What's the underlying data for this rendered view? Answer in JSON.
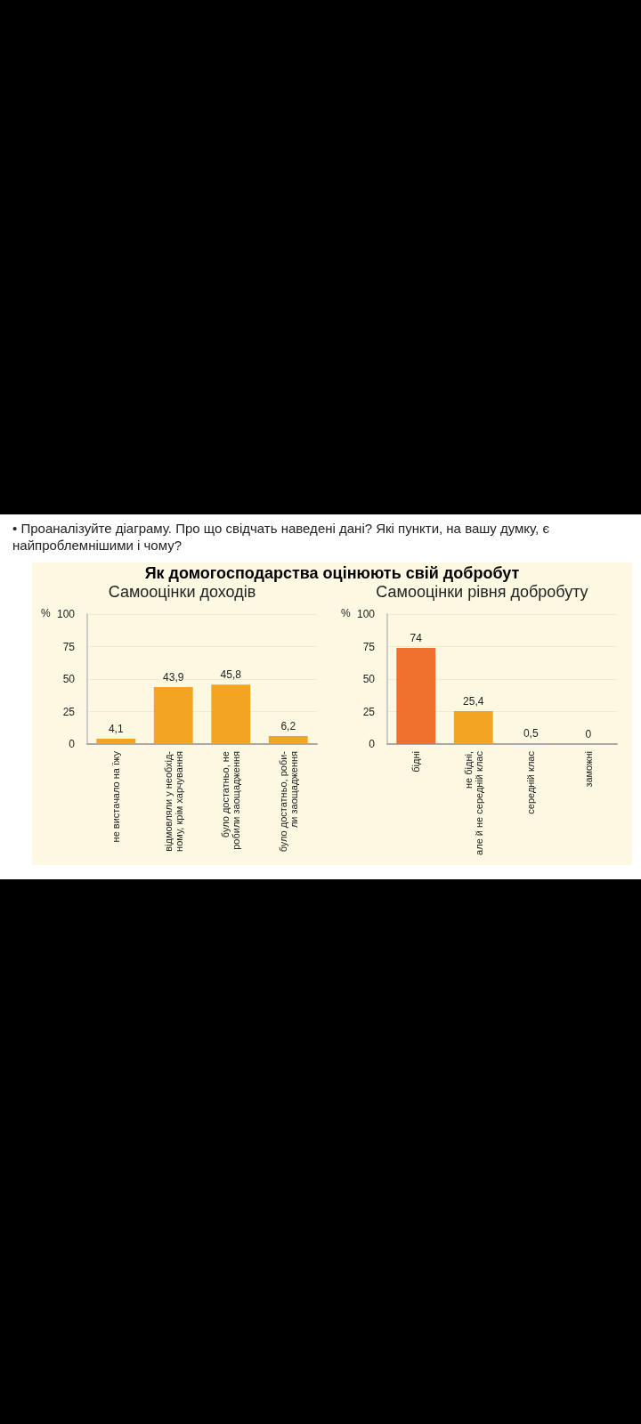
{
  "chart_data": [
    {
      "type": "bar",
      "title": "Як домогосподарства оцінюють свій добробут",
      "subtitle": "Самооцінки доходів",
      "annotations": [
        "• Проаналізуйте діаграму. Про що свідчать наведені дані? Які пункти, на вашу думку, є найпроблемнішими і чому?"
      ],
      "ylabel": "%",
      "categories": [
        "не вистачало на їжу",
        "відмовляли у необхід-\nному, крім харчування",
        "було достатньо, не\nробили заощадження",
        "було достатньо, роби-\nли заощадження"
      ],
      "values": [
        4.1,
        43.9,
        45.8,
        6.2
      ],
      "value_labels": [
        "4,1",
        "43,9",
        "45,8",
        "6,2"
      ],
      "colors": [
        "#f2a422",
        "#f2a422",
        "#f2a422",
        "#f2a422"
      ],
      "ylim": [
        0,
        100
      ],
      "yticks": [
        0,
        25,
        50,
        75,
        100
      ],
      "grid": "y"
    },
    {
      "type": "bar",
      "title": "Самооцінки рівня добробуту",
      "ylabel": "%",
      "categories": [
        "бідні",
        "не бідні,\nале й не середній клас",
        "середній клас",
        "заможні"
      ],
      "values": [
        74,
        25.4,
        0.5,
        0
      ],
      "value_labels": [
        "74",
        "25,4",
        "0,5",
        "0"
      ],
      "colors": [
        "#f0702e",
        "#f2a422",
        "#f2a422",
        "#f2a422"
      ],
      "ylim": [
        0,
        100
      ],
      "yticks": [
        0,
        25,
        50,
        75,
        100
      ],
      "grid": "y"
    }
  ]
}
